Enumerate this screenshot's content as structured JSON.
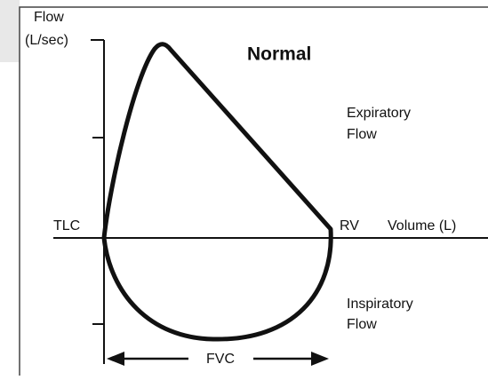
{
  "title": "Normal",
  "y_axis": {
    "label_lines": [
      "Flow",
      "(L/sec)"
    ]
  },
  "x_axis": {
    "label": "Volume (L)",
    "left_point": "TLC",
    "right_point": "RV"
  },
  "regions": {
    "expiratory": [
      "Expiratory",
      "Flow"
    ],
    "inspiratory": [
      "Inspiratory",
      "Flow"
    ]
  },
  "span_label": "FVC"
}
